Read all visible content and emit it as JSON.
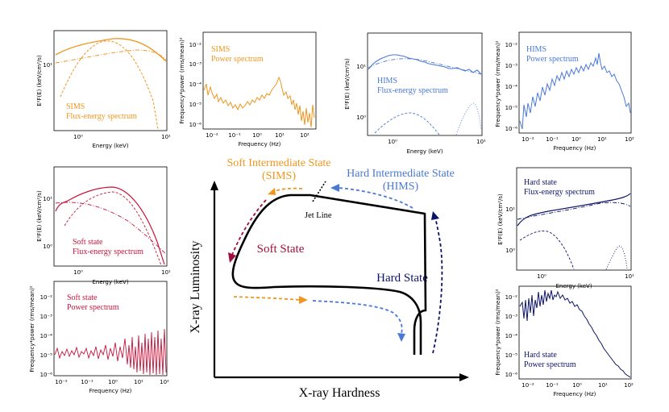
{
  "colors": {
    "sims": "#f0961e",
    "hims": "#4a78d6",
    "soft": "#c8143c",
    "hard": "#0c1468",
    "black": "#000000"
  },
  "diagram": {
    "x_axis_label": "X-ray Hardness",
    "y_axis_label": "X-ray Luminosity",
    "sims_title_line1": "Soft Intermediate State",
    "sims_title_line2": "(SIMS)",
    "hims_title_line1": "Hard Intermediate State",
    "hims_title_line2": "(HIMS)",
    "jet_line": "Jet Line",
    "soft_state": "Soft State",
    "hard_state": "Hard State"
  },
  "panels": {
    "sims_flux": {
      "label_line1": "SIMS",
      "label_line2": "Flux-energy spectrum",
      "xlabel": "Energy (keV)",
      "ylabel": "E²F(E) (keV/cm²/s)",
      "xticks": [
        "10⁰",
        "10¹"
      ],
      "yticks": [
        "10¹"
      ]
    },
    "sims_power": {
      "label_line1": "SIMS",
      "label_line2": "Power spectrum",
      "xlabel": "Frequency (Hz)",
      "ylabel": "Frequency*power (rms/mean)²",
      "xticks": [
        "10⁻²",
        "10⁻¹",
        "10⁰",
        "10¹",
        "10²"
      ],
      "yticks": [
        "10⁻²",
        "10⁻³",
        "10⁻⁴",
        "10⁻⁵",
        "10⁻⁶"
      ]
    },
    "hims_flux": {
      "label_line1": "HIMS",
      "label_line2": "Flux-energy spectrum",
      "xlabel": "Energy (keV)",
      "ylabel": "E²F(E) (keV/cm²/s)",
      "xticks": [
        "10⁰",
        "10¹"
      ],
      "yticks": [
        "10¹",
        "10⁰"
      ]
    },
    "hims_power": {
      "label_line1": "HIMS",
      "label_line2": "Power spectrum",
      "xlabel": "Frequency (Hz)",
      "ylabel": "Frequency*power (rms/mean)²",
      "xticks": [
        "10⁻²",
        "10⁻¹",
        "10⁰",
        "10¹",
        "10²"
      ],
      "yticks": [
        "10⁻²",
        "10⁻³",
        "10⁻⁴",
        "10⁻⁵",
        "10⁻⁶"
      ]
    },
    "soft_flux": {
      "label_line1": "Soft state",
      "label_line2": "Flux-energy spectrum",
      "xlabel": "Energy (keV)",
      "ylabel": "E²F(E) (keV/cm²/s)",
      "xticks": [
        "10⁰",
        "10¹"
      ],
      "yticks": [
        "10¹",
        "10⁰"
      ]
    },
    "soft_power": {
      "label_line1": "Soft state",
      "label_line2": "Power spectrum",
      "xlabel": "Frequency (Hz)",
      "ylabel": "Frequency*power (rms/mean)²",
      "xticks": [
        "10⁻²",
        "10⁻¹",
        "10⁰",
        "10¹",
        "10²"
      ],
      "yticks": [
        "10⁻²",
        "10⁻³",
        "10⁻⁴",
        "10⁻⁵",
        "10⁻⁶"
      ]
    },
    "hard_flux": {
      "label_line1": "Hard state",
      "label_line2": "Flux-energy spectrum",
      "xlabel": "Energy (keV)",
      "ylabel": "E²F(E) (keV/cm²/s)",
      "xticks": [
        "10⁰",
        "10¹"
      ],
      "yticks": [
        "10¹",
        "10⁰"
      ]
    },
    "hard_power": {
      "label_line1": "Hard state",
      "label_line2": "Power spectrum",
      "xlabel": "Frequency (Hz)",
      "ylabel": "Frequency*power (rms/mean)²",
      "xticks": [
        "10⁻²",
        "10⁻¹",
        "10⁰",
        "10¹",
        "10²"
      ],
      "yticks": [
        "10⁻²",
        "10⁻³",
        "10⁻⁴",
        "10⁻⁵",
        "10⁻⁶"
      ]
    }
  }
}
